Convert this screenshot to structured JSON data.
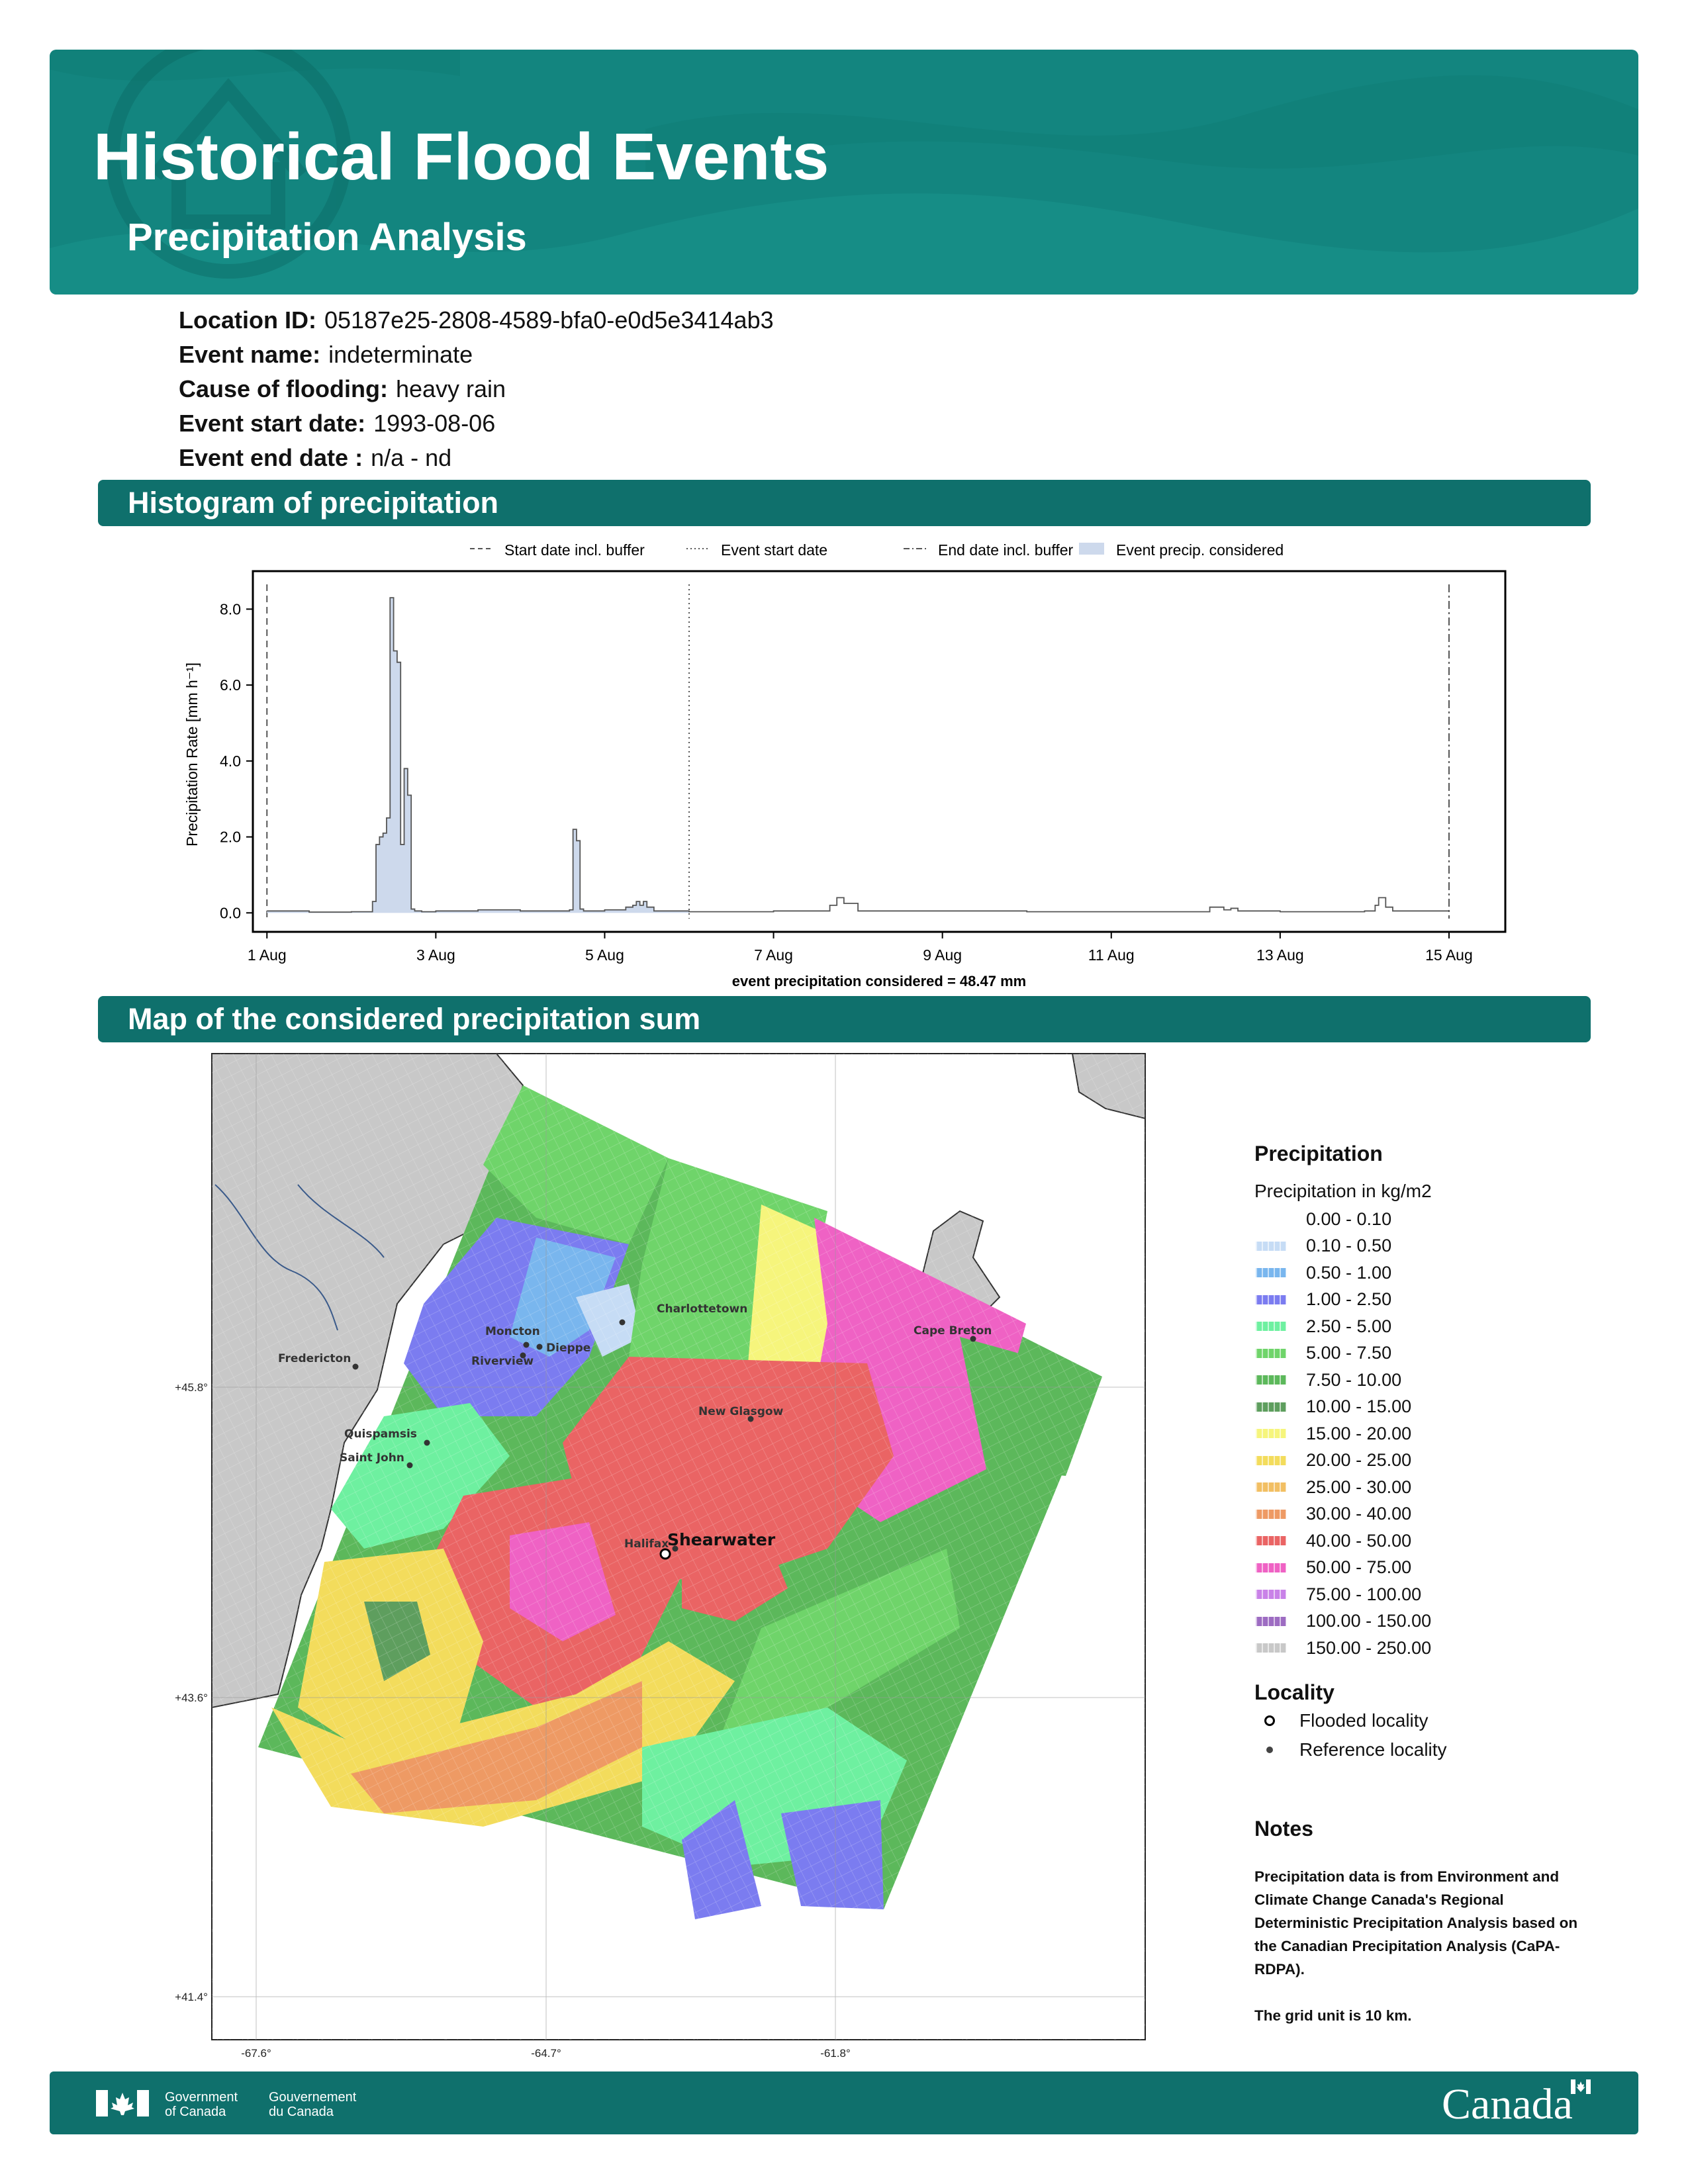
{
  "header": {
    "title": "Historical Flood Events",
    "subtitle": "Precipitation Analysis"
  },
  "event": [
    {
      "label": "Location ID:",
      "value": "05187e25-2808-4589-bfa0-e0d5e3414ab3"
    },
    {
      "label": "Event name:",
      "value": "indeterminate"
    },
    {
      "label": "Cause of flooding:",
      "value": "heavy rain"
    },
    {
      "label": "Event start date:",
      "value": "1993-08-06"
    },
    {
      "label": "Event end date :",
      "value": "n/a - nd"
    }
  ],
  "sections": {
    "histogram": "Histogram of precipitation",
    "map": "Map of the considered precipitation sum"
  },
  "chart_data": {
    "type": "area",
    "xlabel": "",
    "ylabel": "Precipitation Rate [mm h⁻¹]",
    "ylim": [
      -0.5,
      9.0
    ],
    "xlim": [
      "1993-07-31T20:00",
      "1993-08-15T16:00"
    ],
    "yticks": [
      "0.0",
      "2.0",
      "4.0",
      "6.0",
      "8.0"
    ],
    "ytick_values": [
      0,
      2,
      4,
      6,
      8
    ],
    "xticks": [
      "1 Aug",
      "3 Aug",
      "5 Aug",
      "7 Aug",
      "9 Aug",
      "11 Aug",
      "13 Aug",
      "15 Aug"
    ],
    "xtick_dates": [
      "1993-08-01",
      "1993-08-03",
      "1993-08-05",
      "1993-08-07",
      "1993-08-09",
      "1993-08-11",
      "1993-08-13",
      "1993-08-15"
    ],
    "legend": [
      "Start date incl. buffer",
      "Event start date",
      "End date incl. buffer",
      "Event precip. considered"
    ],
    "legend_placement": "top",
    "annotation": "event precipitation considered = 48.47 mm",
    "vlines": [
      {
        "name": "Start date incl. buffer",
        "date": "1993-08-01T00:00",
        "style": "dashed"
      },
      {
        "name": "Event start date",
        "date": "1993-08-06T00:00",
        "style": "dotted"
      },
      {
        "name": "End date incl. buffer",
        "date": "1993-08-15T00:00",
        "style": "dashdot"
      }
    ],
    "considered_range": [
      "1993-08-01T00:00",
      "1993-08-06T00:00"
    ],
    "series": [
      {
        "x": [
          "1993-08-01T00:00",
          "1993-08-01T12:00",
          "1993-08-02T00:00",
          "1993-08-02T06:00",
          "1993-08-02T07:00",
          "1993-08-02T08:00",
          "1993-08-02T09:00",
          "1993-08-02T10:00",
          "1993-08-02T11:00",
          "1993-08-02T12:00",
          "1993-08-02T13:00",
          "1993-08-02T14:00",
          "1993-08-02T15:00",
          "1993-08-02T16:00",
          "1993-08-02T17:00",
          "1993-08-02T18:00",
          "1993-08-02T20:00",
          "1993-08-03T00:00",
          "1993-08-03T12:00",
          "1993-08-04T00:00",
          "1993-08-04T14:00",
          "1993-08-04T15:00",
          "1993-08-04T16:00",
          "1993-08-04T17:00",
          "1993-08-04T18:00",
          "1993-08-05T00:00",
          "1993-08-05T06:00",
          "1993-08-05T08:00",
          "1993-08-05T09:00",
          "1993-08-05T10:00",
          "1993-08-05T11:00",
          "1993-08-05T12:00",
          "1993-08-05T14:00",
          "1993-08-06T00:00",
          "1993-08-07T00:00",
          "1993-08-07T16:00",
          "1993-08-07T18:00",
          "1993-08-07T20:00",
          "1993-08-08T00:00",
          "1993-08-10T00:00",
          "1993-08-12T00:00",
          "1993-08-12T04:00",
          "1993-08-12T08:00",
          "1993-08-12T10:00",
          "1993-08-12T12:00",
          "1993-08-13T00:00",
          "1993-08-14T00:00",
          "1993-08-14T03:00",
          "1993-08-14T04:00",
          "1993-08-14T06:00",
          "1993-08-14T08:00",
          "1993-08-15T00:00"
        ],
        "values": [
          0.05,
          0.02,
          0.03,
          0.3,
          1.8,
          2.0,
          2.1,
          2.5,
          8.3,
          6.9,
          6.6,
          1.8,
          3.8,
          3.1,
          0.1,
          0.05,
          0.03,
          0.05,
          0.08,
          0.05,
          0.08,
          2.2,
          1.9,
          0.1,
          0.05,
          0.08,
          0.15,
          0.2,
          0.3,
          0.2,
          0.3,
          0.15,
          0.05,
          0.03,
          0.05,
          0.2,
          0.4,
          0.25,
          0.05,
          0.03,
          0.03,
          0.15,
          0.08,
          0.12,
          0.05,
          0.03,
          0.05,
          0.2,
          0.4,
          0.15,
          0.05,
          0.03
        ]
      }
    ]
  },
  "map": {
    "lat_ticks": [
      "+45.8°",
      "+43.6°",
      "+41.4°"
    ],
    "lon_ticks": [
      "-67.6°",
      "-64.7°",
      "-61.8°"
    ],
    "flooded_locality": "Shearwater",
    "reference_localities": [
      "Charlottetown",
      "Moncton",
      "Dieppe",
      "Riverview",
      "Fredericton",
      "Cape Breton",
      "New Glasgow",
      "Quispamsis",
      "Saint John",
      "Halifax"
    ]
  },
  "legend": {
    "title": "Precipitation",
    "subtitle": "Precipitation in kg/m2",
    "classes": [
      {
        "label": "0.00 - 0.10",
        "color": "#ffffff"
      },
      {
        "label": "0.10 - 0.50",
        "color": "#c6dcf5"
      },
      {
        "label": "0.50 - 1.00",
        "color": "#79b6ee"
      },
      {
        "label": "1.00 - 2.50",
        "color": "#7b7cf0"
      },
      {
        "label": "2.50 - 5.00",
        "color": "#6ef0a0"
      },
      {
        "label": "5.00 - 7.50",
        "color": "#6fd46a"
      },
      {
        "label": "7.50 - 10.00",
        "color": "#5cb85b"
      },
      {
        "label": "10.00 - 15.00",
        "color": "#5e9e5e"
      },
      {
        "label": "15.00 - 20.00",
        "color": "#f6f57c"
      },
      {
        "label": "20.00 - 25.00",
        "color": "#f3dc5c"
      },
      {
        "label": "25.00 - 30.00",
        "color": "#f2bf63"
      },
      {
        "label": "30.00 - 40.00",
        "color": "#ee9a64"
      },
      {
        "label": "40.00 - 50.00",
        "color": "#ea6464"
      },
      {
        "label": "50.00 - 75.00",
        "color": "#ef62c4"
      },
      {
        "label": "75.00 - 100.00",
        "color": "#c982e8"
      },
      {
        "label": "100.00 - 150.00",
        "color": "#9d6cc2"
      },
      {
        "label": "150.00 - 250.00",
        "color": "#c8c8c8"
      }
    ],
    "locality_title": "Locality",
    "flooded_label": "Flooded locality",
    "reference_label": "Reference locality"
  },
  "notes": {
    "title": "Notes",
    "lines": [
      "Precipitation data is from Environment and Climate Change Canada's Regional Deterministic Precipitation Analysis based on the Canadian Precipitation Analysis (CaPA-RDPA).",
      "The grid unit is 10 km."
    ]
  },
  "footer": {
    "gov_en": [
      "Government",
      "of Canada"
    ],
    "gov_fr": [
      "Gouvernement",
      "du Canada"
    ],
    "wordmark": "Canada"
  }
}
